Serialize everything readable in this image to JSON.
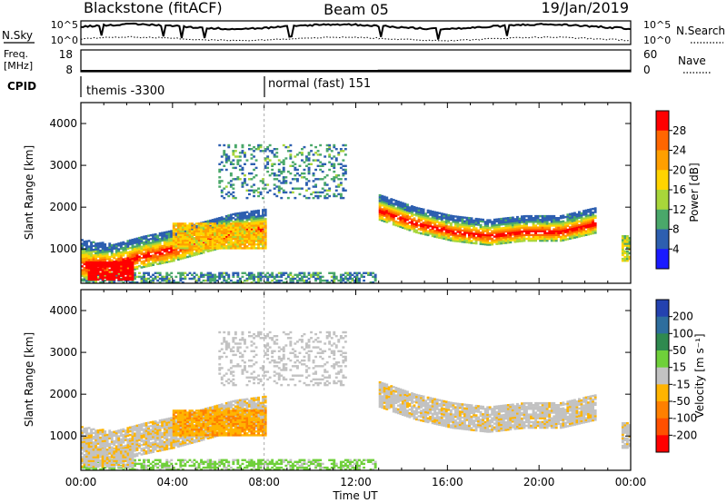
{
  "header": {
    "station": "Blackstone (fitACF)",
    "beam": "Beam 05",
    "date": "19/Jan/2019"
  },
  "panels": {
    "nsky": {
      "left_label": "N.Sky",
      "right_label": "N.Search",
      "ticks_left": [
        "10^5",
        "10^0"
      ],
      "ticks_right": [
        "10^5",
        "10^0"
      ]
    },
    "freq": {
      "left_label_1": "Freq.",
      "left_label_2": "[MHz]",
      "right_label": "Nave",
      "ticks_left": [
        "18",
        "8"
      ],
      "ticks_right": [
        "60",
        "0"
      ]
    },
    "cpid": {
      "label": "CPID",
      "modes": [
        {
          "name": "themis -3300",
          "start_hour": 0.0
        },
        {
          "name": "normal (fast) 151",
          "start_hour": 8.0
        }
      ]
    },
    "power": {
      "ylabel": "Slant Range [km]",
      "cbar_label": "Power [dB]",
      "cbar_ticks": [
        "28",
        "24",
        "20",
        "16",
        "12",
        "8",
        "4"
      ],
      "cbar_colors": [
        "#ff0000",
        "#ff6600",
        "#ff9f00",
        "#ffd400",
        "#a8d63a",
        "#4aa86a",
        "#2d5fb0",
        "#1a1aff"
      ]
    },
    "velocity": {
      "ylabel": "Slant Range [km]",
      "cbar_label": "Velocity [m s⁻¹]",
      "cbar_ticks": [
        "200",
        "100",
        "50",
        "15",
        "-15",
        "-50",
        "-100",
        "-200"
      ],
      "cbar_colors": [
        "#2442b0",
        "#2e6e9e",
        "#2f8a4f",
        "#6fd03a",
        "#c2c2c2",
        "#ffb400",
        "#ff8000",
        "#ff5000",
        "#ff0000"
      ]
    },
    "xaxis": {
      "label": "Time UT",
      "ticks": [
        "00:00",
        "04:00",
        "08:00",
        "12:00",
        "16:00",
        "20:00",
        "00:00"
      ]
    },
    "yaxis": {
      "ticks": [
        "1000",
        "2000",
        "3000",
        "4000"
      ]
    }
  },
  "chart_data": {
    "type": "heatmap",
    "x_unit": "hours UT",
    "y_unit": "km",
    "xlim": [
      0,
      24
    ],
    "ylim": [
      180,
      4500
    ],
    "power_db_range": [
      0,
      30
    ],
    "velocity_range": [
      -250,
      250
    ],
    "features": [
      {
        "name": "near_range_band",
        "t": [
          0.0,
          12.8
        ],
        "range_km": [
          180,
          450
        ],
        "power_db": 8,
        "velocity": 25
      },
      {
        "name": "early_echo_arc",
        "t": [
          0.0,
          8.0
        ],
        "range_lower_km": [
          250,
          350,
          550,
          700,
          900,
          1100,
          1200
        ],
        "range_upper_km": [
          1200,
          1100,
          1300,
          1450,
          1650,
          1850,
          1950
        ],
        "power_db": 22,
        "velocity": -10
      },
      {
        "name": "strong_core_0-2h",
        "t": [
          0.3,
          2.3
        ],
        "range_km": [
          250,
          700
        ],
        "power_db": 30,
        "velocity": -10
      },
      {
        "name": "orange_vel_patch",
        "t": [
          4.0,
          8.0
        ],
        "range_km": [
          1000,
          1600
        ],
        "power_db": 18,
        "velocity": -45
      },
      {
        "name": "scatter_3000km",
        "t": [
          6.0,
          11.5
        ],
        "range_km": [
          2200,
          3500
        ],
        "power_db": 8,
        "velocity": 0
      },
      {
        "name": "post_13h_echo_band",
        "t": [
          13.0,
          22.5
        ],
        "range_center_km": [
          2000,
          1700,
          1500,
          1400,
          1500,
          1500,
          1700
        ],
        "power_db": 22,
        "velocity": -5
      },
      {
        "name": "late_band_end",
        "t": [
          23.6,
          24.0
        ],
        "range_km": [
          700,
          1300
        ],
        "power_db": 14,
        "velocity": -5
      }
    ]
  }
}
